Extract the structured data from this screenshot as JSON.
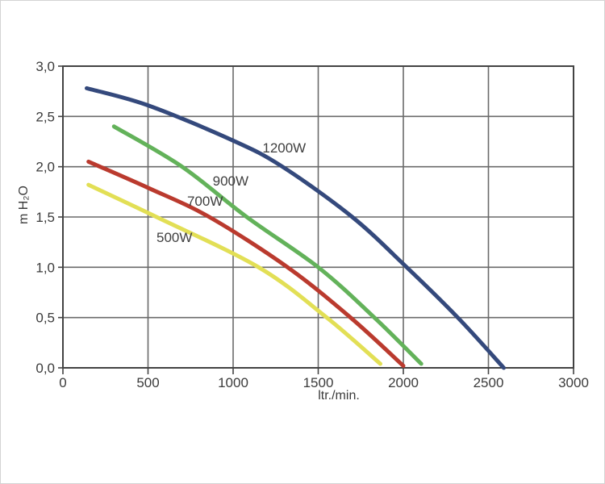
{
  "chart_data": {
    "type": "line",
    "title": "",
    "xlabel": "ltr./min.",
    "ylabel": "m H₂O",
    "xlim": [
      0,
      3000
    ],
    "ylim": [
      0,
      3.0
    ],
    "grid": true,
    "legend_position": "inline-labels",
    "colors": {
      "background": "#ffffff",
      "frame": "#434343",
      "gridline": "#6a6a6a",
      "tick_text": "#3b3b3b",
      "label_text": "#3f3f3f"
    },
    "x_ticks": [
      {
        "value": 0,
        "label": "0"
      },
      {
        "value": 500,
        "label": "500"
      },
      {
        "value": 1000,
        "label": "1000"
      },
      {
        "value": 1500,
        "label": "1500"
      },
      {
        "value": 2000,
        "label": "2000"
      },
      {
        "value": 2500,
        "label": "2500"
      },
      {
        "value": 3000,
        "label": "3000"
      }
    ],
    "y_ticks": [
      {
        "value": 0.0,
        "label": "0,0"
      },
      {
        "value": 0.5,
        "label": "0,5"
      },
      {
        "value": 1.0,
        "label": "1,0"
      },
      {
        "value": 1.5,
        "label": "1,5"
      },
      {
        "value": 2.0,
        "label": "2,0"
      },
      {
        "value": 2.5,
        "label": "2,5"
      },
      {
        "value": 3.0,
        "label": "3,0"
      }
    ],
    "series": [
      {
        "name": "1200W",
        "color": "#34497c",
        "label": "1200W",
        "label_at": [
          1300,
          2.19
        ],
        "points": [
          [
            140,
            2.78
          ],
          [
            500,
            2.61
          ],
          [
            1000,
            2.26
          ],
          [
            1290,
            2.0
          ],
          [
            1700,
            1.5
          ],
          [
            2020,
            1.0
          ],
          [
            2320,
            0.5
          ],
          [
            2590,
            0.0
          ]
        ]
      },
      {
        "name": "900W",
        "color": "#63b25a",
        "label": "900W",
        "label_at": [
          985,
          1.86
        ],
        "points": [
          [
            300,
            2.4
          ],
          [
            700,
            2.0
          ],
          [
            1080,
            1.5
          ],
          [
            1500,
            1.0
          ],
          [
            1830,
            0.5
          ],
          [
            2105,
            0.04
          ]
        ]
      },
      {
        "name": "700W",
        "color": "#ba3a2e",
        "label": "700W",
        "label_at": [
          835,
          1.66
        ],
        "points": [
          [
            150,
            2.05
          ],
          [
            500,
            1.79
          ],
          [
            860,
            1.5
          ],
          [
            1320,
            1.0
          ],
          [
            1690,
            0.5
          ],
          [
            2000,
            0.02
          ]
        ]
      },
      {
        "name": "500W",
        "color": "#e2df55",
        "label": "500W",
        "label_at": [
          655,
          1.3
        ],
        "points": [
          [
            150,
            1.82
          ],
          [
            550,
            1.5
          ],
          [
            1150,
            1.0
          ],
          [
            1550,
            0.5
          ],
          [
            1865,
            0.04
          ]
        ]
      }
    ]
  }
}
